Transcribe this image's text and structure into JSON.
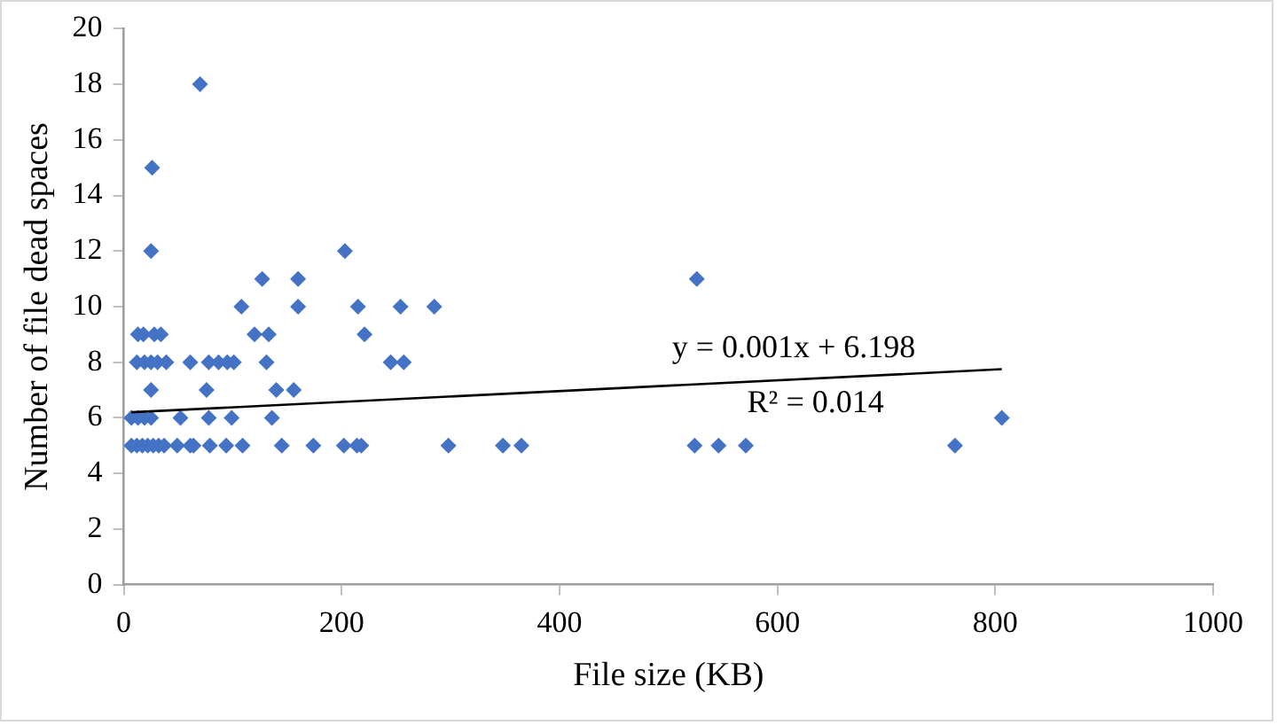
{
  "chart_data": {
    "type": "scatter",
    "xlabel": "File size (KB)",
    "ylabel": "Number of file dead spaces",
    "xlim": [
      0,
      1000
    ],
    "xticks": [
      0,
      200,
      400,
      600,
      800,
      1000
    ],
    "ylim": [
      0,
      20
    ],
    "yticks": [
      0,
      2,
      4,
      6,
      8,
      10,
      12,
      14,
      16,
      18,
      20
    ],
    "grid": false,
    "legend": false,
    "marker": "diamond",
    "series": [
      {
        "color": "#4472c4",
        "x": [
          70,
          26,
          25,
          203,
          127,
          160,
          526,
          108,
          160,
          215,
          254,
          285,
          13,
          18,
          28,
          34,
          120,
          133,
          221,
          12,
          19,
          25,
          31,
          39,
          61,
          78,
          87,
          95,
          101,
          131,
          245,
          257,
          25,
          76,
          140,
          156,
          7,
          13,
          19,
          25,
          52,
          78,
          99,
          136,
          806,
          7,
          12,
          17,
          22,
          27,
          32,
          37,
          49,
          61,
          64,
          79,
          94,
          109,
          145,
          174,
          202,
          214,
          218,
          298,
          348,
          365,
          524,
          546,
          571,
          763
        ],
        "values": [
          18,
          15,
          12,
          12,
          11,
          11,
          11,
          10,
          10,
          10,
          10,
          10,
          9,
          9,
          9,
          9,
          9,
          9,
          9,
          8,
          8,
          8,
          8,
          8,
          8,
          8,
          8,
          8,
          8,
          8,
          8,
          8,
          7,
          7,
          7,
          7,
          6,
          6,
          6,
          6,
          6,
          6,
          6,
          6,
          6,
          5,
          5,
          5,
          5,
          5,
          5,
          5,
          5,
          5,
          5,
          5,
          5,
          5,
          5,
          5,
          5,
          5,
          5,
          5,
          5,
          5,
          5,
          5,
          5,
          5
        ]
      },
      {
        "type": "line",
        "color": "#000000",
        "x": [
          7,
          806
        ],
        "values": [
          6.2,
          7.75
        ],
        "marker": "none",
        "line_style": "solid"
      }
    ],
    "annotations": [
      "y = 0.001x + 6.198",
      "R² = 0.014"
    ]
  }
}
